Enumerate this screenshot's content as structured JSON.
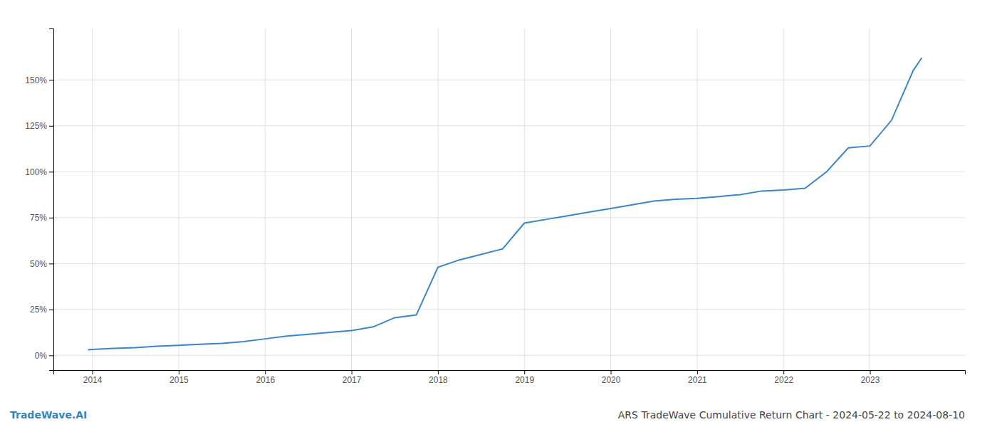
{
  "chart_data": {
    "type": "line",
    "title": "ARS TradeWave Cumulative Return Chart - 2024-05-22 to 2024-08-10",
    "annotations": [
      "TradeWave.AI"
    ],
    "color": "#3a86c8",
    "grid": true,
    "x": [
      2013.95,
      2014.0,
      2014.25,
      2014.5,
      2014.75,
      2015.0,
      2015.25,
      2015.5,
      2015.75,
      2016.0,
      2016.25,
      2016.5,
      2016.75,
      2017.0,
      2017.25,
      2017.5,
      2017.75,
      2018.0,
      2018.25,
      2018.5,
      2018.75,
      2019.0,
      2019.25,
      2019.5,
      2019.75,
      2020.0,
      2020.25,
      2020.5,
      2020.75,
      2021.0,
      2021.25,
      2021.5,
      2021.75,
      2022.0,
      2022.25,
      2022.5,
      2022.75,
      2023.0,
      2023.25,
      2023.5,
      2023.6
    ],
    "values": [
      3.0,
      3.2,
      3.8,
      4.2,
      5.0,
      5.5,
      6.0,
      6.5,
      7.5,
      9.0,
      10.5,
      11.5,
      12.5,
      13.5,
      15.5,
      20.5,
      22.0,
      48.0,
      52.0,
      55.0,
      58.0,
      72.0,
      74.0,
      76.0,
      78.0,
      80.0,
      82.0,
      84.0,
      85.0,
      85.5,
      86.5,
      87.5,
      89.5,
      90.0,
      91.0,
      100.0,
      113.0,
      114.0,
      128.0,
      155.0,
      162.0
    ],
    "xlim": [
      2013.55,
      2024.1
    ],
    "xticks": [
      2014,
      2015,
      2016,
      2017,
      2018,
      2019,
      2020,
      2021,
      2022,
      2023
    ],
    "ylim": [
      -8,
      178
    ],
    "yticks": [
      {
        "value": 0,
        "label": "0%"
      },
      {
        "value": 25,
        "label": "25%"
      },
      {
        "value": 50,
        "label": "50%"
      },
      {
        "value": 75,
        "label": "75%"
      },
      {
        "value": 100,
        "label": "100%"
      },
      {
        "value": 125,
        "label": "125%"
      },
      {
        "value": 150,
        "label": "150%"
      }
    ]
  }
}
